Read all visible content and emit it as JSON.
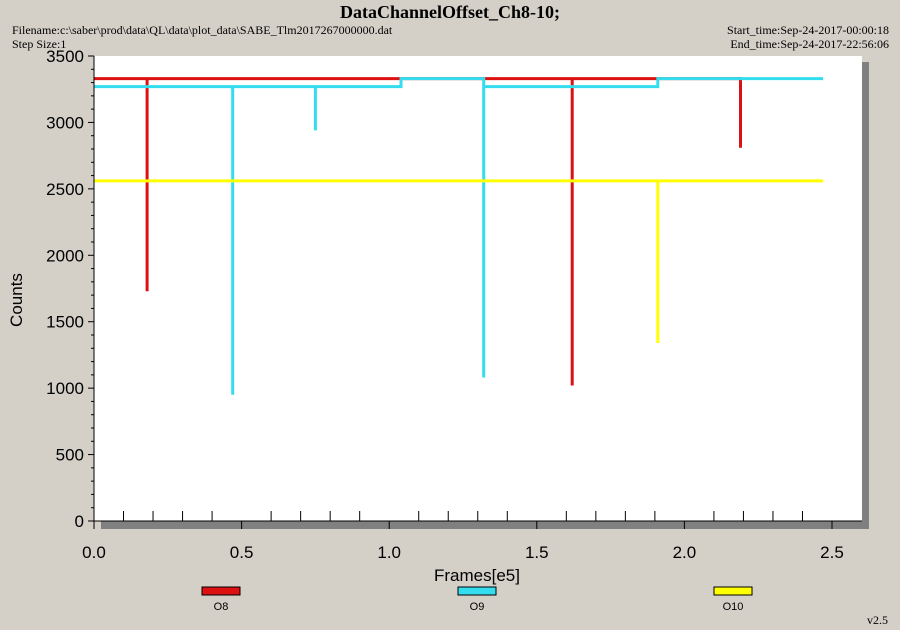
{
  "header": {
    "title": "DataChannelOffset_Ch8-10;",
    "filename": "Filename:c:\\saber\\prod\\data\\QL\\data\\plot_data\\SABE_Tlm2017267000000.dat",
    "step_size": "Step Size:1",
    "start_time": "Start_time:Sep-24-2017-00:00:18",
    "end_time": "End_time:Sep-24-2017-22:56:06"
  },
  "version": "v2.5",
  "chart_data": {
    "type": "line",
    "title": "DataChannelOffset_Ch8-10;",
    "xlabel": "Frames[e5]",
    "ylabel": "Counts",
    "xlim": [
      0.0,
      2.6
    ],
    "ylim": [
      0,
      3500
    ],
    "x_ticks": [
      "0.0",
      "0.5",
      "1.0",
      "1.5",
      "2.0",
      "2.5"
    ],
    "y_ticks": [
      "0",
      "500",
      "1000",
      "1500",
      "2000",
      "2500",
      "3000",
      "3500"
    ],
    "grid": false,
    "legend_placement": "bottom",
    "series": [
      {
        "name": "O8",
        "color": "#dd1111",
        "points": [
          [
            0.0,
            3330
          ],
          [
            0.18,
            3330
          ],
          [
            0.18,
            1730
          ],
          [
            0.18,
            3330
          ],
          [
            1.62,
            3330
          ],
          [
            1.62,
            1020
          ],
          [
            1.62,
            3330
          ],
          [
            2.19,
            3330
          ],
          [
            2.19,
            2810
          ],
          [
            2.19,
            3330
          ],
          [
            2.19,
            3330
          ]
        ]
      },
      {
        "name": "O9",
        "color": "#33ddee",
        "points": [
          [
            0.0,
            3270
          ],
          [
            0.47,
            3270
          ],
          [
            0.47,
            950
          ],
          [
            0.47,
            3270
          ],
          [
            0.75,
            3270
          ],
          [
            0.75,
            2940
          ],
          [
            0.75,
            3270
          ],
          [
            1.04,
            3270
          ],
          [
            1.04,
            3330
          ],
          [
            1.32,
            3330
          ],
          [
            1.32,
            1080
          ],
          [
            1.32,
            3270
          ],
          [
            1.91,
            3270
          ],
          [
            1.91,
            3330
          ],
          [
            2.47,
            3330
          ]
        ]
      },
      {
        "name": "O10",
        "color": "#ffff00",
        "points": [
          [
            0.0,
            2560
          ],
          [
            1.91,
            2560
          ],
          [
            1.91,
            1340
          ],
          [
            1.91,
            2560
          ],
          [
            2.47,
            2560
          ]
        ]
      }
    ]
  }
}
